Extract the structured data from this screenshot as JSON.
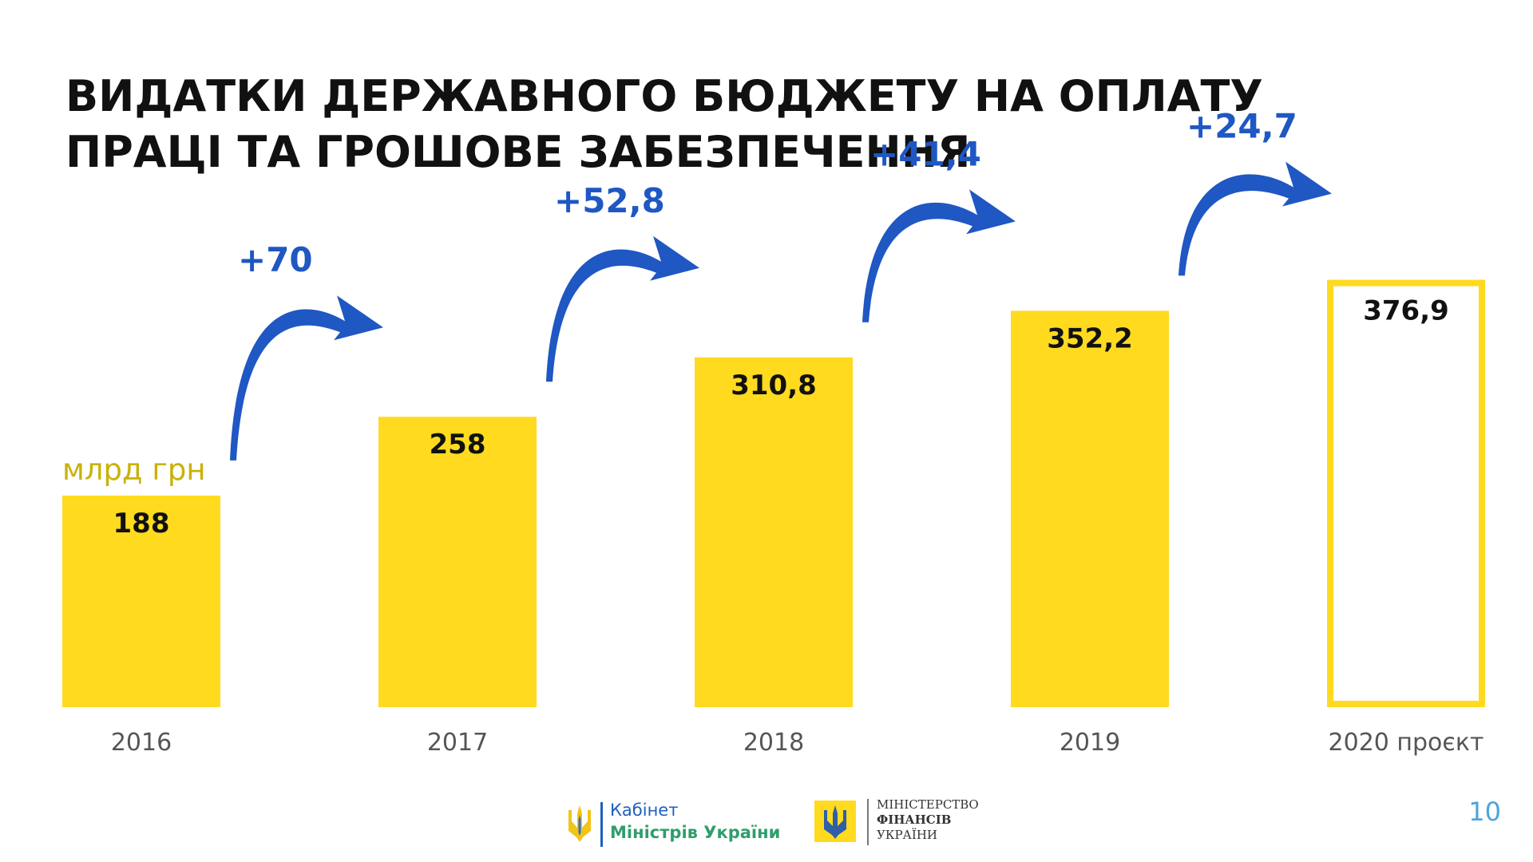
{
  "title": {
    "line1": "ВИДАТКИ ДЕРЖАВНОГО БЮДЖЕТУ  НА ОПЛАТУ",
    "line2": "ПРАЦІ ТА ГРОШОВЕ ЗАБЕЗПЕЧЕННЯ"
  },
  "colors": {
    "bar_fill": "#FFDA1F",
    "arrow": "#1F57C3",
    "delta_text": "#1F57C3",
    "unit_text": "#C9B20A",
    "label_text": "#111111",
    "year_text": "#555555",
    "projection_outline": "#FFDA1F"
  },
  "chart_data": {
    "type": "bar",
    "title": "ВИДАТКИ ДЕРЖАВНОГО БЮДЖЕТУ  НА ОПЛАТУ ПРАЦІ ТА ГРОШОВЕ ЗАБЕЗПЕЧЕННЯ",
    "unit": "млрд грн",
    "categories": [
      "2016",
      "2017",
      "2018",
      "2019",
      "2020 проєкт"
    ],
    "values": [
      188,
      258,
      310.8,
      352.2,
      376.9
    ],
    "value_labels": [
      "188",
      "258",
      "310,8",
      "352,2",
      "376,9"
    ],
    "bar_style": [
      "filled",
      "filled",
      "filled",
      "filled",
      "outline"
    ],
    "increments": [
      {
        "from": "2016",
        "to": "2017",
        "label": "+70"
      },
      {
        "from": "2017",
        "to": "2018",
        "label": "+52,8"
      },
      {
        "from": "2018",
        "to": "2019",
        "label": "+41,4"
      },
      {
        "from": "2019",
        "to": "2020 проєкт",
        "label": "+24,7"
      }
    ],
    "ylim": [
      0,
      400
    ],
    "grid": false,
    "legend": "none"
  },
  "footer": {
    "cabinet_line1": "Кабінет",
    "cabinet_line2": "Міністрів України",
    "ministry_line1": "МІНІСТЕРСТВО",
    "ministry_line2": "ФІНАНСІВ",
    "ministry_line3": "УКРАЇНИ",
    "page_number": "10"
  }
}
